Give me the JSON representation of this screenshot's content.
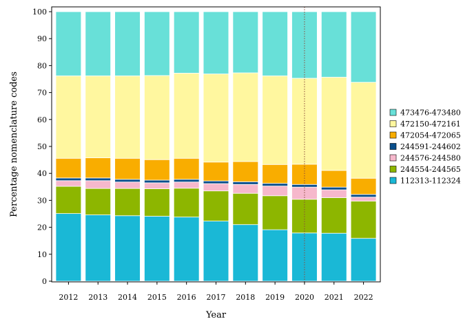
{
  "chart_data": {
    "type": "bar",
    "stacked": true,
    "xlabel": "Year",
    "ylabel": "Percentage nomenclature codes",
    "ylim": [
      0,
      100
    ],
    "yticks": [
      0,
      10,
      20,
      30,
      40,
      50,
      60,
      70,
      80,
      90,
      100
    ],
    "categories": [
      "2012",
      "2013",
      "2014",
      "2015",
      "2016",
      "2017",
      "2018",
      "2019",
      "2020",
      "2021",
      "2022"
    ],
    "reference_line": {
      "category": "2020",
      "style": "dotted",
      "color": "#8b4a3a"
    },
    "legend_position": "right",
    "series": [
      {
        "name": "112313-112324",
        "color": "#1ab8d6",
        "values": [
          25.1,
          24.6,
          24.3,
          24.1,
          23.8,
          22.3,
          21.0,
          19.1,
          17.9,
          17.8,
          15.9
        ]
      },
      {
        "name": "244554-244565",
        "color": "#8db600",
        "values": [
          10.1,
          9.8,
          10.1,
          10.2,
          10.7,
          11.2,
          11.6,
          12.6,
          12.5,
          13.2,
          13.8
        ]
      },
      {
        "name": "244576-244580",
        "color": "#f6b8cc",
        "values": [
          2.1,
          2.9,
          2.4,
          2.2,
          2.3,
          2.7,
          3.3,
          3.6,
          4.5,
          2.9,
          1.5
        ]
      },
      {
        "name": "244591-244602",
        "color": "#0b4f8c",
        "values": [
          1.0,
          1.0,
          1.0,
          1.0,
          1.0,
          1.0,
          1.0,
          1.0,
          1.0,
          1.0,
          1.0
        ]
      },
      {
        "name": "472054-472065",
        "color": "#f9ad00",
        "values": [
          7.3,
          7.5,
          7.8,
          7.6,
          7.8,
          7.0,
          7.5,
          7.0,
          7.5,
          6.2,
          6.0
        ]
      },
      {
        "name": "472150-472161",
        "color": "#fff79f",
        "values": [
          30.6,
          30.4,
          30.6,
          31.2,
          31.6,
          32.7,
          32.9,
          32.9,
          31.9,
          34.6,
          35.6
        ]
      },
      {
        "name": "473476-473480",
        "color": "#68e0d8",
        "values": [
          23.8,
          23.8,
          23.8,
          23.7,
          22.8,
          23.1,
          22.7,
          23.8,
          24.7,
          24.3,
          26.2
        ]
      }
    ]
  }
}
